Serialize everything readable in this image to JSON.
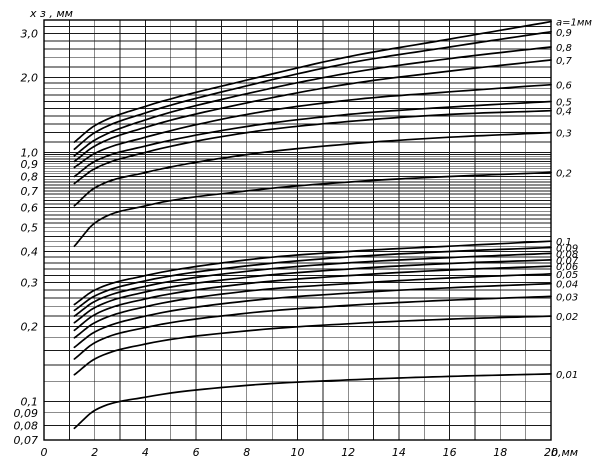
{
  "chart_data": {
    "type": "line",
    "ylabel": "x з , мм",
    "xlabel": "b,мм",
    "x_scale": "linear",
    "y_scale": "log",
    "xlim": [
      0,
      20
    ],
    "ylim": [
      0.07,
      3.4
    ],
    "grid": true,
    "x_ticks": [
      0,
      2,
      4,
      6,
      8,
      10,
      12,
      14,
      16,
      18,
      20
    ],
    "x_tick_labels": [
      "0",
      "2",
      "4",
      "6",
      "8",
      "10",
      "12",
      "14",
      "16",
      "18",
      "20"
    ],
    "y_ticks": [
      0.07,
      0.08,
      0.09,
      0.1,
      0.2,
      0.3,
      0.4,
      0.5,
      0.6,
      0.7,
      0.8,
      0.9,
      1.0,
      2.0,
      3.0
    ],
    "y_tick_labels": [
      "0,07",
      "0,08",
      "0,09",
      "0,1",
      "0,2",
      "0,3",
      "0,4",
      "0,5",
      "0,6",
      "0,7",
      "0,8",
      "0,9",
      "1,0",
      "2,0",
      "3,0"
    ],
    "series": [
      {
        "name": "a=1мм",
        "x": [
          1.2,
          2,
          4,
          8,
          12,
          16,
          20
        ],
        "y": [
          1.1,
          1.28,
          1.53,
          1.95,
          2.42,
          2.85,
          3.35
        ]
      },
      {
        "name": "0,9",
        "x": [
          1.2,
          2,
          4,
          8,
          12,
          16,
          20
        ],
        "y": [
          1.03,
          1.2,
          1.44,
          1.85,
          2.28,
          2.65,
          3.05
        ]
      },
      {
        "name": "0,8",
        "x": [
          1.2,
          2,
          4,
          8,
          12,
          16,
          20
        ],
        "y": [
          0.97,
          1.12,
          1.35,
          1.72,
          2.08,
          2.38,
          2.65
        ]
      },
      {
        "name": "0,7",
        "x": [
          1.2,
          2,
          4,
          8,
          12,
          16,
          20
        ],
        "y": [
          0.92,
          1.06,
          1.26,
          1.58,
          1.88,
          2.12,
          2.35
        ]
      },
      {
        "name": "0,6",
        "x": [
          1.2,
          2,
          4,
          8,
          12,
          16,
          20
        ],
        "y": [
          0.87,
          0.99,
          1.15,
          1.42,
          1.62,
          1.75,
          1.87
        ]
      },
      {
        "name": "0,5",
        "x": [
          1.2,
          2,
          4,
          8,
          12,
          16,
          20
        ],
        "y": [
          0.8,
          0.92,
          1.06,
          1.27,
          1.42,
          1.52,
          1.6
        ]
      },
      {
        "name": "0,4",
        "x": [
          1.2,
          2,
          4,
          8,
          12,
          16,
          20
        ],
        "y": [
          0.75,
          0.86,
          1.0,
          1.2,
          1.33,
          1.42,
          1.47
        ]
      },
      {
        "name": "0,3",
        "x": [
          1.2,
          2,
          4,
          8,
          12,
          16,
          20
        ],
        "y": [
          0.61,
          0.72,
          0.83,
          0.98,
          1.08,
          1.15,
          1.2
        ]
      },
      {
        "name": "0,2",
        "x": [
          1.2,
          2,
          4,
          8,
          12,
          16,
          20
        ],
        "y": [
          0.42,
          0.52,
          0.61,
          0.7,
          0.76,
          0.8,
          0.83
        ]
      },
      {
        "name": "0,1",
        "x": [
          1.2,
          2,
          4,
          8,
          12,
          16,
          20
        ],
        "y": [
          0.245,
          0.28,
          0.32,
          0.37,
          0.4,
          0.42,
          0.44
        ]
      },
      {
        "name": "0,09",
        "x": [
          1.2,
          2,
          4,
          8,
          12,
          16,
          20
        ],
        "y": [
          0.232,
          0.265,
          0.305,
          0.35,
          0.38,
          0.4,
          0.415
        ]
      },
      {
        "name": "0,08",
        "x": [
          1.2,
          2,
          4,
          8,
          12,
          16,
          20
        ],
        "y": [
          0.22,
          0.252,
          0.29,
          0.333,
          0.36,
          0.378,
          0.393
        ]
      },
      {
        "name": "0,07",
        "x": [
          1.2,
          2,
          4,
          8,
          12,
          16,
          20
        ],
        "y": [
          0.207,
          0.238,
          0.275,
          0.315,
          0.34,
          0.358,
          0.37
        ]
      },
      {
        "name": "0,06",
        "x": [
          1.2,
          2,
          4,
          8,
          12,
          16,
          20
        ],
        "y": [
          0.193,
          0.223,
          0.258,
          0.297,
          0.32,
          0.337,
          0.349
        ]
      },
      {
        "name": "0,05",
        "x": [
          1.2,
          2,
          4,
          8,
          12,
          16,
          20
        ],
        "y": [
          0.18,
          0.207,
          0.24,
          0.277,
          0.297,
          0.313,
          0.325
        ]
      },
      {
        "name": "0,04",
        "x": [
          1.2,
          2,
          4,
          8,
          12,
          16,
          20
        ],
        "y": [
          0.165,
          0.19,
          0.22,
          0.253,
          0.272,
          0.286,
          0.297
        ]
      },
      {
        "name": "0,03",
        "x": [
          1.2,
          2,
          4,
          8,
          12,
          16,
          20
        ],
        "y": [
          0.148,
          0.172,
          0.198,
          0.226,
          0.243,
          0.255,
          0.264
        ]
      },
      {
        "name": "0,02",
        "x": [
          1.2,
          2,
          4,
          8,
          12,
          16,
          20
        ],
        "y": [
          0.128,
          0.148,
          0.17,
          0.192,
          0.205,
          0.214,
          0.22
        ]
      },
      {
        "name": "0,01",
        "x": [
          1.2,
          2,
          4,
          8,
          12,
          16,
          20
        ],
        "y": [
          0.078,
          0.092,
          0.104,
          0.116,
          0.122,
          0.126,
          0.129
        ]
      }
    ]
  }
}
